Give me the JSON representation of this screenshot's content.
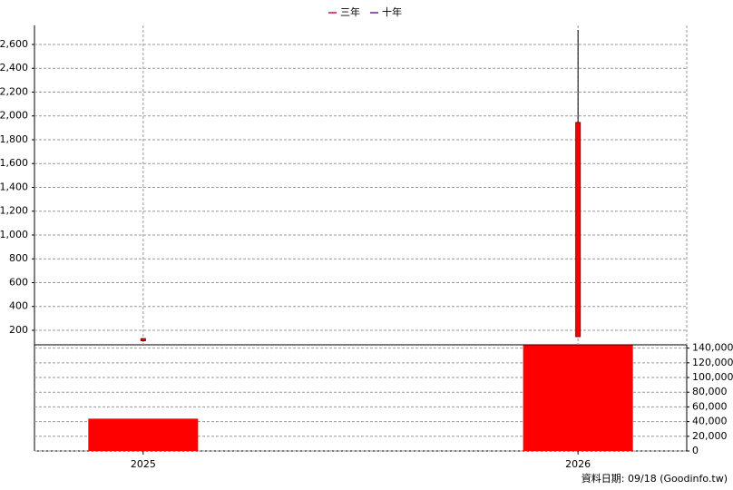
{
  "chart_data": [
    {
      "type": "candlestick",
      "legend": [
        {
          "name": "三年",
          "color": "#d0103a"
        },
        {
          "name": "十年",
          "color": "#6a1fb0"
        }
      ],
      "open": [
        112,
        147
      ],
      "high": [
        134,
        2722
      ],
      "low": [
        104,
        143
      ],
      "close": [
        130,
        1945
      ],
      "color": "#ff0000",
      "edge": "#800000",
      "ylim": [
        78,
        2760
      ],
      "yticks": [
        200,
        400,
        600,
        800,
        {
          "value": 1000,
          "label": "1,000"
        },
        {
          "value": 1200,
          "label": "1,200"
        },
        {
          "value": 1400,
          "label": "1,400"
        },
        {
          "value": 1600,
          "label": "1,600"
        },
        {
          "value": 1800,
          "label": "1,800"
        },
        {
          "value": 2000,
          "label": "2,000"
        },
        {
          "value": 2200,
          "label": "2,200"
        },
        {
          "value": 2400,
          "label": "2,400"
        },
        {
          "value": 2600,
          "label": "2,600"
        }
      ],
      "grid": true
    },
    {
      "type": "bar",
      "categories": [
        "2025",
        "2026"
      ],
      "values": [
        44000,
        144000
      ],
      "color": "#ff0000",
      "ylim": [
        0,
        144500
      ],
      "yticks": [
        0,
        {
          "value": 20000,
          "label": "20,000"
        },
        {
          "value": 40000,
          "label": "40,000"
        },
        {
          "value": 60000,
          "label": "60,000"
        },
        {
          "value": 80000,
          "label": "80,000"
        },
        {
          "value": 100000,
          "label": "100,000"
        },
        {
          "value": 120000,
          "label": "120,000"
        },
        {
          "value": 140000,
          "label": "140,000"
        }
      ],
      "grid": true
    }
  ],
  "footer": "資料日期: 09/18  (Goodinfo.tw)"
}
